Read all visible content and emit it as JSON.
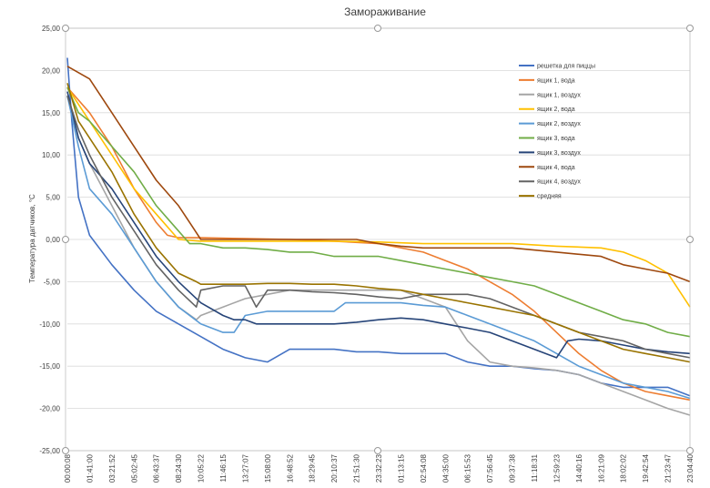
{
  "chart_data": {
    "type": "line",
    "title": "Замораживание",
    "xlabel": "",
    "ylabel": "Температура датчиков, °С",
    "ylim": [
      -25,
      25
    ],
    "yticks": [
      "25,00",
      "20,00",
      "15,00",
      "10,00",
      "5,00",
      "0,00",
      "-5,00",
      "-10,00",
      "-15,00",
      "-20,00",
      "-25,00"
    ],
    "x_ticks": [
      "00:00:08",
      "01:41:00",
      "03:21:52",
      "05:02:45",
      "06:43:37",
      "08:24:30",
      "10:05:22",
      "11:46:15",
      "13:27:07",
      "15:08:00",
      "16:48:52",
      "18:29:45",
      "20:10:37",
      "21:51:30",
      "23:32:23",
      "01:13:15",
      "02:54:08",
      "04:35:00",
      "06:15:53",
      "07:56:45",
      "09:37:38",
      "11:18:31",
      "12:59:23",
      "14:40:16",
      "16:21:09",
      "18:02:02",
      "19:42:54",
      "21:23:47",
      "23:04:40"
    ],
    "grid": true,
    "legend_position": "right",
    "series": [
      {
        "name": "решетка для пиццы",
        "color": "#4472C4",
        "points": [
          [
            0,
            21.5
          ],
          [
            0.2,
            14
          ],
          [
            0.5,
            5
          ],
          [
            1,
            0.5
          ],
          [
            2,
            -3
          ],
          [
            3,
            -6
          ],
          [
            4,
            -8.5
          ],
          [
            5,
            -10
          ],
          [
            6,
            -11.5
          ],
          [
            7,
            -13
          ],
          [
            8,
            -14
          ],
          [
            9,
            -14.5
          ],
          [
            10,
            -13
          ],
          [
            11,
            -13
          ],
          [
            12,
            -13
          ],
          [
            13,
            -13.3
          ],
          [
            14,
            -13.3
          ],
          [
            15,
            -13.5
          ],
          [
            16,
            -13.5
          ],
          [
            17,
            -13.5
          ],
          [
            18,
            -14.5
          ],
          [
            19,
            -15
          ],
          [
            20,
            -15
          ],
          [
            21,
            -15.3
          ],
          [
            22,
            -15.5
          ],
          [
            23,
            -16
          ],
          [
            24,
            -17
          ],
          [
            25,
            -17.5
          ],
          [
            26,
            -17.5
          ],
          [
            27,
            -17.5
          ],
          [
            28,
            -18.5
          ]
        ]
      },
      {
        "name": "ящик 1, вода",
        "color": "#ED7D31",
        "points": [
          [
            0,
            18
          ],
          [
            1,
            15
          ],
          [
            2,
            11
          ],
          [
            3,
            6
          ],
          [
            4,
            2
          ],
          [
            4.5,
            0.5
          ],
          [
            5,
            0.2
          ],
          [
            6,
            0.2
          ],
          [
            8,
            0.1
          ],
          [
            10,
            0
          ],
          [
            12,
            -0.2
          ],
          [
            14,
            -0.5
          ],
          [
            16,
            -1.5
          ],
          [
            17,
            -2.5
          ],
          [
            18,
            -3.5
          ],
          [
            19,
            -5
          ],
          [
            20,
            -6.5
          ],
          [
            21,
            -8.5
          ],
          [
            22,
            -11
          ],
          [
            23,
            -13.5
          ],
          [
            24,
            -15.5
          ],
          [
            25,
            -17
          ],
          [
            26,
            -18
          ],
          [
            27,
            -18.5
          ],
          [
            28,
            -19
          ]
        ]
      },
      {
        "name": "ящик 1, воздух",
        "color": "#A5A5A5",
        "points": [
          [
            0,
            17
          ],
          [
            0.5,
            12
          ],
          [
            1,
            9
          ],
          [
            2,
            4
          ],
          [
            3,
            -1
          ],
          [
            4,
            -5
          ],
          [
            5,
            -8
          ],
          [
            5.8,
            -9.5
          ],
          [
            6,
            -9
          ],
          [
            7,
            -8
          ],
          [
            8,
            -7
          ],
          [
            9,
            -6.5
          ],
          [
            10,
            -6
          ],
          [
            11,
            -6
          ],
          [
            12,
            -6
          ],
          [
            13,
            -6
          ],
          [
            14,
            -6
          ],
          [
            15,
            -6
          ],
          [
            16,
            -7
          ],
          [
            17,
            -8
          ],
          [
            18,
            -12
          ],
          [
            19,
            -14.5
          ],
          [
            20,
            -15
          ],
          [
            21,
            -15.2
          ],
          [
            22,
            -15.5
          ],
          [
            23,
            -16
          ],
          [
            24,
            -17
          ],
          [
            25,
            -18
          ],
          [
            26,
            -19
          ],
          [
            27,
            -20
          ],
          [
            28,
            -20.8
          ]
        ]
      },
      {
        "name": "ящик 2, вода",
        "color": "#FFC000",
        "points": [
          [
            0,
            18
          ],
          [
            1,
            14
          ],
          [
            2,
            10
          ],
          [
            3,
            6
          ],
          [
            4,
            3
          ],
          [
            5,
            0
          ],
          [
            6,
            -0.2
          ],
          [
            8,
            -0.2
          ],
          [
            10,
            -0.2
          ],
          [
            12,
            -0.2
          ],
          [
            14,
            -0.3
          ],
          [
            16,
            -0.5
          ],
          [
            18,
            -0.5
          ],
          [
            20,
            -0.5
          ],
          [
            22,
            -0.8
          ],
          [
            24,
            -1
          ],
          [
            25,
            -1.5
          ],
          [
            26,
            -2.5
          ],
          [
            27,
            -4
          ],
          [
            28,
            -8
          ]
        ]
      },
      {
        "name": "ящик 2, воздух",
        "color": "#5B9BD5",
        "points": [
          [
            0,
            17
          ],
          [
            0.5,
            11
          ],
          [
            1,
            6
          ],
          [
            2,
            3
          ],
          [
            3,
            -1
          ],
          [
            4,
            -5
          ],
          [
            5,
            -8
          ],
          [
            6,
            -10
          ],
          [
            7,
            -11
          ],
          [
            7.5,
            -11
          ],
          [
            8,
            -9
          ],
          [
            9,
            -8.5
          ],
          [
            10,
            -8.5
          ],
          [
            11,
            -8.5
          ],
          [
            12,
            -8.5
          ],
          [
            12.5,
            -7.5
          ],
          [
            13,
            -7.5
          ],
          [
            14,
            -7.5
          ],
          [
            15,
            -7.5
          ],
          [
            16,
            -7.8
          ],
          [
            17,
            -8
          ],
          [
            18,
            -9
          ],
          [
            19,
            -10
          ],
          [
            20,
            -11
          ],
          [
            21,
            -12
          ],
          [
            22,
            -13.5
          ],
          [
            23,
            -15
          ],
          [
            24,
            -16
          ],
          [
            25,
            -17
          ],
          [
            26,
            -17.5
          ],
          [
            27,
            -18
          ],
          [
            28,
            -18.8
          ]
        ]
      },
      {
        "name": "ящик 3, вода",
        "color": "#70AD47",
        "points": [
          [
            0,
            18
          ],
          [
            0.5,
            15
          ],
          [
            1,
            14
          ],
          [
            2,
            11
          ],
          [
            3,
            8
          ],
          [
            4,
            4
          ],
          [
            5,
            1
          ],
          [
            5.5,
            -0.5
          ],
          [
            6,
            -0.5
          ],
          [
            7,
            -1
          ],
          [
            8,
            -1
          ],
          [
            9,
            -1.2
          ],
          [
            10,
            -1.5
          ],
          [
            11,
            -1.5
          ],
          [
            12,
            -2
          ],
          [
            13,
            -2
          ],
          [
            14,
            -2
          ],
          [
            15,
            -2.5
          ],
          [
            16,
            -3
          ],
          [
            17,
            -3.5
          ],
          [
            18,
            -4
          ],
          [
            19,
            -4.5
          ],
          [
            20,
            -5
          ],
          [
            21,
            -5.5
          ],
          [
            22,
            -6.5
          ],
          [
            23,
            -7.5
          ],
          [
            24,
            -8.5
          ],
          [
            25,
            -9.5
          ],
          [
            26,
            -10
          ],
          [
            27,
            -11
          ],
          [
            28,
            -11.5
          ]
        ]
      },
      {
        "name": "ящик 3, воздух",
        "color": "#264478",
        "points": [
          [
            0,
            17.5
          ],
          [
            0.5,
            12
          ],
          [
            1,
            9
          ],
          [
            2,
            6
          ],
          [
            3,
            2
          ],
          [
            4,
            -2
          ],
          [
            5,
            -5
          ],
          [
            6,
            -7.5
          ],
          [
            7,
            -9
          ],
          [
            7.5,
            -9.5
          ],
          [
            8,
            -9.5
          ],
          [
            8.5,
            -10
          ],
          [
            9,
            -10
          ],
          [
            10,
            -10
          ],
          [
            11,
            -10
          ],
          [
            12,
            -10
          ],
          [
            13,
            -9.8
          ],
          [
            14,
            -9.5
          ],
          [
            15,
            -9.3
          ],
          [
            16,
            -9.5
          ],
          [
            17,
            -10
          ],
          [
            18,
            -10.5
          ],
          [
            19,
            -11
          ],
          [
            20,
            -12
          ],
          [
            21,
            -13
          ],
          [
            22,
            -14
          ],
          [
            22.5,
            -12
          ],
          [
            23,
            -11.8
          ],
          [
            24,
            -12
          ],
          [
            25,
            -12.5
          ],
          [
            26,
            -13
          ],
          [
            27,
            -13.3
          ],
          [
            28,
            -13.5
          ]
        ]
      },
      {
        "name": "ящик 4, вода",
        "color": "#9E480E",
        "points": [
          [
            0,
            20.5
          ],
          [
            1,
            19
          ],
          [
            2,
            15
          ],
          [
            3,
            11
          ],
          [
            4,
            7
          ],
          [
            5,
            4
          ],
          [
            5.5,
            2
          ],
          [
            6,
            0
          ],
          [
            8,
            0
          ],
          [
            10,
            0
          ],
          [
            12,
            0
          ],
          [
            13,
            0
          ],
          [
            14,
            -0.5
          ],
          [
            15,
            -0.8
          ],
          [
            16,
            -1
          ],
          [
            18,
            -1
          ],
          [
            20,
            -1
          ],
          [
            22,
            -1.5
          ],
          [
            24,
            -2
          ],
          [
            25,
            -3
          ],
          [
            26,
            -3.5
          ],
          [
            27,
            -4
          ],
          [
            28,
            -5
          ]
        ]
      },
      {
        "name": "ящик 4, воздух",
        "color": "#636363",
        "points": [
          [
            0,
            17
          ],
          [
            0.5,
            13
          ],
          [
            1,
            10
          ],
          [
            2,
            5
          ],
          [
            3,
            1
          ],
          [
            4,
            -3
          ],
          [
            5,
            -6
          ],
          [
            5.8,
            -8
          ],
          [
            6,
            -6
          ],
          [
            7,
            -5.5
          ],
          [
            8,
            -5.5
          ],
          [
            8.5,
            -8
          ],
          [
            9,
            -6
          ],
          [
            10,
            -6
          ],
          [
            11,
            -6.2
          ],
          [
            12,
            -6.3
          ],
          [
            13,
            -6.5
          ],
          [
            14,
            -6.8
          ],
          [
            15,
            -7
          ],
          [
            16,
            -6.5
          ],
          [
            17,
            -6.5
          ],
          [
            18,
            -6.5
          ],
          [
            19,
            -7
          ],
          [
            20,
            -8
          ],
          [
            21,
            -9
          ],
          [
            22,
            -10
          ],
          [
            23,
            -11
          ],
          [
            24,
            -11.5
          ],
          [
            25,
            -12
          ],
          [
            26,
            -13
          ],
          [
            27,
            -13.5
          ],
          [
            28,
            -14
          ]
        ]
      },
      {
        "name": "средняя",
        "color": "#997300",
        "points": [
          [
            0,
            18.5
          ],
          [
            0.5,
            14
          ],
          [
            1,
            12
          ],
          [
            2,
            8
          ],
          [
            3,
            3
          ],
          [
            4,
            -1
          ],
          [
            5,
            -4
          ],
          [
            5.8,
            -5
          ],
          [
            6,
            -5.3
          ],
          [
            7,
            -5.3
          ],
          [
            8,
            -5.3
          ],
          [
            9,
            -5.2
          ],
          [
            10,
            -5.2
          ],
          [
            11,
            -5.3
          ],
          [
            12,
            -5.3
          ],
          [
            13,
            -5.5
          ],
          [
            14,
            -5.8
          ],
          [
            15,
            -6
          ],
          [
            16,
            -6.5
          ],
          [
            17,
            -7
          ],
          [
            18,
            -7.5
          ],
          [
            19,
            -8
          ],
          [
            20,
            -8.5
          ],
          [
            21,
            -9
          ],
          [
            22,
            -10
          ],
          [
            23,
            -11
          ],
          [
            24,
            -12
          ],
          [
            25,
            -13
          ],
          [
            26,
            -13.5
          ],
          [
            27,
            -14
          ],
          [
            28,
            -14.5
          ]
        ]
      }
    ]
  }
}
